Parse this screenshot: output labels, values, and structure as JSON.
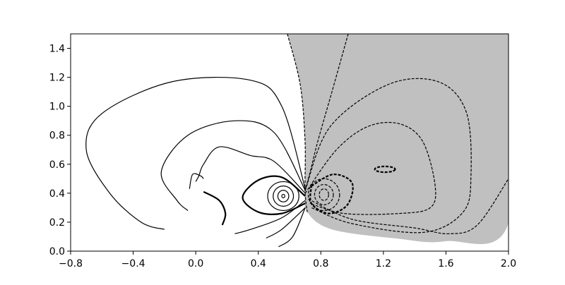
{
  "chart_data": {
    "type": "contour",
    "xlim": [
      -0.8,
      2.0
    ],
    "ylim": [
      0,
      1.5
    ],
    "xticks": [
      {
        "value": -0.8,
        "label": "−0.8"
      },
      {
        "value": -0.4,
        "label": "−0.4"
      },
      {
        "value": 0,
        "label": "0.0"
      },
      {
        "value": 0.4,
        "label": "0.4"
      },
      {
        "value": 0.8,
        "label": "0.8"
      },
      {
        "value": 1.2,
        "label": "1.2"
      },
      {
        "value": 1.6,
        "label": "1.6"
      },
      {
        "value": 2,
        "label": "2.0"
      }
    ],
    "yticks": [
      {
        "value": 0,
        "label": "0.0"
      },
      {
        "value": 0.2,
        "label": "0.2"
      },
      {
        "value": 0.4,
        "label": "0.4"
      },
      {
        "value": 0.6,
        "label": "0.6"
      },
      {
        "value": 0.8,
        "label": "0.8"
      },
      {
        "value": 1,
        "label": "1.0"
      },
      {
        "value": 1.2,
        "label": "1.2"
      },
      {
        "value": 1.4,
        "label": "1.4"
      }
    ],
    "fill_color": "#c0c0c0",
    "fill_region": {
      "x": [
        0.586,
        0.668,
        0.699,
        0.699,
        0.713,
        0.871,
        1.277,
        1.594,
        2.0,
        2.0
      ],
      "y": [
        1.5,
        1.15,
        0.76,
        0.42,
        0.27,
        0.15,
        0.088,
        0.068,
        0.195,
        1.5
      ]
    },
    "contours": [
      {
        "style": "dashed",
        "width": 1.2,
        "x": [
          0.586,
          0.668,
          0.699,
          0.699,
          0.713
        ],
        "y": [
          1.5,
          1.15,
          0.76,
          0.42,
          0.27
        ]
      },
      {
        "style": "dashed",
        "width": 1.2,
        "x": [
          0.975,
          0.871,
          0.781,
          0.736,
          0.7
        ],
        "y": [
          1.5,
          1.1,
          0.76,
          0.565,
          0.42
        ]
      },
      {
        "style": "dashed",
        "width": 1.2,
        "x": [
          0.7,
          0.86,
          1.23,
          1.55,
          1.73,
          1.76,
          1.71,
          1.46,
          1.0,
          0.74
        ],
        "y": [
          0.42,
          0.86,
          1.15,
          1.17,
          0.96,
          0.52,
          0.27,
          0.13,
          0.19,
          0.3
        ]
      },
      {
        "style": "dashed",
        "width": 1.2,
        "x": [
          0.7,
          0.9,
          1.1,
          1.3,
          1.45,
          1.53,
          1.5,
          1.3,
          0.95,
          0.73
        ],
        "y": [
          0.4,
          0.7,
          0.86,
          0.88,
          0.76,
          0.46,
          0.3,
          0.26,
          0.26,
          0.33
        ]
      },
      {
        "style": "dashed",
        "width": 1.2,
        "x": [
          0.72,
          1.0,
          1.4,
          1.62,
          1.8,
          2.0
        ],
        "y": [
          0.36,
          0.22,
          0.16,
          0.12,
          0.18,
          0.5
        ]
      },
      {
        "style": "dashed",
        "width": 2.2,
        "x": [
          0.74,
          0.88,
          1.0,
          0.97,
          0.85,
          0.74,
          0.74
        ],
        "y": [
          0.45,
          0.53,
          0.47,
          0.32,
          0.26,
          0.33,
          0.45
        ]
      },
      {
        "style": "solid",
        "width": 1.2,
        "x": [
          0.7,
          0.55,
          0.35,
          -0.15,
          -0.6,
          -0.7,
          -0.55,
          -0.35,
          -0.2
        ],
        "y": [
          0.43,
          1.0,
          1.18,
          1.17,
          0.95,
          0.7,
          0.4,
          0.2,
          0.15
        ]
      },
      {
        "style": "solid",
        "width": 1.2,
        "x": [
          0.7,
          0.5,
          0.25,
          -0.05,
          -0.22,
          -0.12,
          -0.05
        ],
        "y": [
          0.42,
          0.82,
          0.9,
          0.8,
          0.55,
          0.35,
          0.28
        ]
      },
      {
        "style": "solid",
        "width": 1.2,
        "x": [
          0.7,
          0.5,
          0.35,
          0.15,
          0.05,
          0.02,
          0.0
        ],
        "y": [
          0.4,
          0.62,
          0.66,
          0.72,
          0.6,
          0.52,
          0.48
        ]
      },
      {
        "style": "solid",
        "width": 2.2,
        "x": [
          0.7,
          0.55,
          0.4,
          0.3,
          0.4,
          0.55,
          0.7
        ],
        "y": [
          0.38,
          0.51,
          0.49,
          0.37,
          0.27,
          0.26,
          0.33
        ]
      },
      {
        "style": "solid",
        "width": 2.2,
        "x": [
          0.05,
          0.15,
          0.19,
          0.17
        ],
        "y": [
          0.41,
          0.35,
          0.26,
          0.18
        ]
      },
      {
        "style": "solid",
        "width": 1.2,
        "x": [
          0.7,
          0.55,
          0.35,
          0.25
        ],
        "y": [
          0.35,
          0.23,
          0.15,
          0.12
        ]
      },
      {
        "style": "solid",
        "width": 1.2,
        "x": [
          0.7,
          0.55,
          0.45
        ],
        "y": [
          0.3,
          0.15,
          0.09
        ]
      },
      {
        "style": "solid",
        "width": 1.2,
        "x": [
          0.7,
          0.62,
          0.53
        ],
        "y": [
          0.3,
          0.1,
          0.03
        ]
      },
      {
        "style": "solid",
        "width": 1.2,
        "x": [
          -0.04,
          -0.02,
          0.03,
          0.05
        ],
        "y": [
          0.43,
          0.53,
          0.52,
          0.5
        ]
      }
    ],
    "ellipses": [
      {
        "style": "dashed",
        "width": 2.2,
        "cx": 1.21,
        "cy": 0.565,
        "rx": 0.065,
        "ry": 0.02
      },
      {
        "style": "dashed",
        "width": 1.2,
        "cx": 0.82,
        "cy": 0.39,
        "rx": 0.1,
        "ry": 0.11
      },
      {
        "style": "dashed",
        "width": 1.2,
        "cx": 0.82,
        "cy": 0.39,
        "rx": 0.06,
        "ry": 0.07
      },
      {
        "style": "dashed",
        "width": 1.2,
        "cx": 0.82,
        "cy": 0.39,
        "rx": 0.03,
        "ry": 0.04
      },
      {
        "style": "solid",
        "width": 1.2,
        "cx": 0.56,
        "cy": 0.38,
        "rx": 0.1,
        "ry": 0.1
      },
      {
        "style": "solid",
        "width": 1.2,
        "cx": 0.56,
        "cy": 0.38,
        "rx": 0.065,
        "ry": 0.07
      },
      {
        "style": "solid",
        "width": 1.2,
        "cx": 0.56,
        "cy": 0.38,
        "rx": 0.035,
        "ry": 0.04
      },
      {
        "style": "solid",
        "width": 1.2,
        "cx": 0.56,
        "cy": 0.38,
        "rx": 0.01,
        "ry": 0.012
      }
    ]
  }
}
